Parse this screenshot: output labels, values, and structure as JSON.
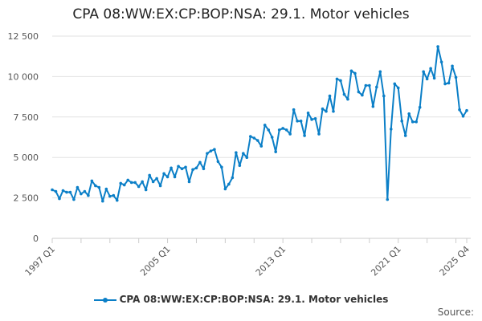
{
  "chart_data": {
    "type": "line",
    "title": "CPA 08:WW:EX:CP:BOP:NSA: 29.1. Motor vehicles",
    "xlabel": "",
    "ylabel": "",
    "ylim": [
      0,
      12500
    ],
    "yticks": [
      0,
      2500,
      5000,
      7500,
      10000,
      12500
    ],
    "ytick_labels": [
      "0",
      "2 500",
      "5 000",
      "7 500",
      "10 000",
      "12 500"
    ],
    "x_start": "1997 Q1",
    "x_end": "2025 Q4",
    "xtick_labels": [
      {
        "index": 0,
        "label": "1997 Q1"
      },
      {
        "index": 32,
        "label": "2005 Q1"
      },
      {
        "index": 64,
        "label": "2013 Q1"
      },
      {
        "index": 96,
        "label": "2021 Q1"
      },
      {
        "index": 115,
        "label": "2025 Q4"
      }
    ],
    "color": "#0b7fc7",
    "grid": true,
    "legend_placement": "bottom",
    "series": [
      {
        "name": "CPA 08:WW:EX:CP:BOP:NSA: 29.1. Motor vehicles",
        "values": [
          3000,
          2900,
          2450,
          2950,
          2850,
          2850,
          2400,
          3150,
          2750,
          2900,
          2650,
          3550,
          3250,
          3150,
          2300,
          3050,
          2600,
          2650,
          2350,
          3400,
          3300,
          3600,
          3450,
          3450,
          3200,
          3500,
          3000,
          3900,
          3500,
          3700,
          3250,
          4000,
          3800,
          4350,
          3800,
          4450,
          4300,
          4400,
          3500,
          4250,
          4350,
          4700,
          4300,
          5250,
          5400,
          5500,
          4750,
          4400,
          3050,
          3350,
          3750,
          5300,
          4500,
          5250,
          5000,
          6300,
          6200,
          6050,
          5700,
          7000,
          6700,
          6250,
          5350,
          6700,
          6800,
          6700,
          6450,
          7950,
          7250,
          7250,
          6350,
          7750,
          7350,
          7400,
          6450,
          8000,
          7850,
          8800,
          7850,
          9850,
          9750,
          8900,
          8600,
          10350,
          10200,
          9050,
          8850,
          9450,
          9450,
          8150,
          9350,
          10300,
          8800,
          2400,
          6750,
          9550,
          9300,
          7250,
          6350,
          7700,
          7200,
          7200,
          8100,
          10300,
          9850,
          10500,
          9900,
          11850,
          10900,
          9550,
          9600,
          10650,
          9950,
          7950,
          7550,
          7900
        ]
      }
    ],
    "source_label": "Source:"
  }
}
